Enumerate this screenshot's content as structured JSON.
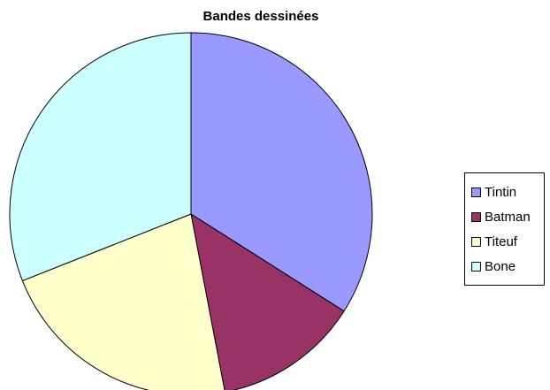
{
  "chart_data": {
    "type": "pie",
    "title": "Bandes dessinées",
    "categories": [
      "Tintin",
      "Batman",
      "Titeuf",
      "Bone"
    ],
    "values": [
      34,
      13,
      22,
      31
    ],
    "colors": [
      "#9999FF",
      "#993366",
      "#FFFFCC",
      "#CCFFFF"
    ],
    "start_angle": "12 o'clock",
    "direction": "clockwise",
    "legend": "right"
  }
}
